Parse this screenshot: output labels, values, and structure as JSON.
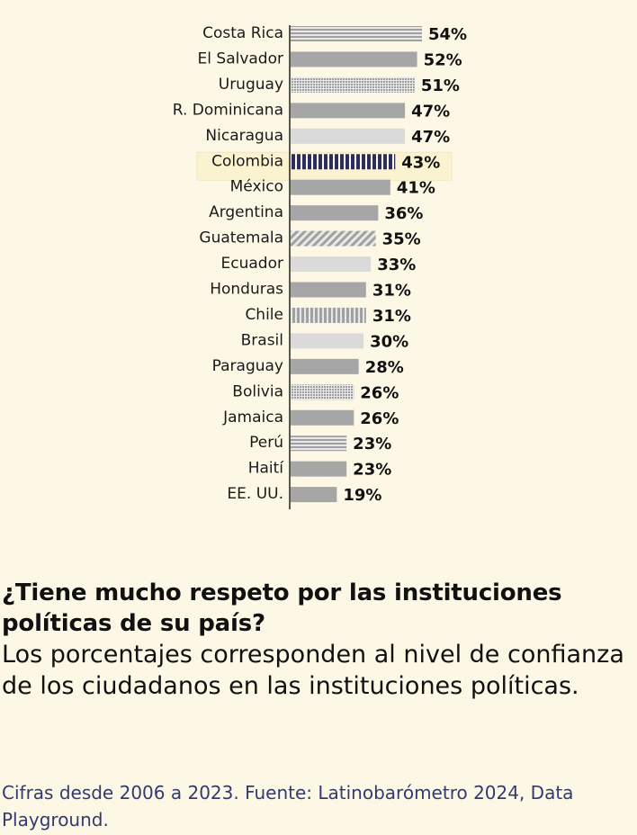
{
  "chart_data": {
    "type": "bar",
    "orientation": "horizontal",
    "categories": [
      "Costa Rica",
      "El Salvador",
      "Uruguay",
      "R. Dominicana",
      "Nicaragua",
      "Colombia",
      "México",
      "Argentina",
      "Guatemala",
      "Ecuador",
      "Honduras",
      "Chile",
      "Brasil",
      "Paraguay",
      "Bolivia",
      "Jamaica",
      "Perú",
      "Haití",
      "EE. UU."
    ],
    "values": [
      54,
      52,
      51,
      47,
      47,
      43,
      41,
      36,
      35,
      33,
      31,
      31,
      30,
      28,
      26,
      26,
      23,
      23,
      19
    ],
    "value_labels": [
      "54%",
      "52%",
      "51%",
      "47%",
      "47%",
      "43%",
      "41%",
      "36%",
      "35%",
      "33%",
      "31%",
      "31%",
      "30%",
      "28%",
      "26%",
      "26%",
      "23%",
      "23%",
      "19%"
    ],
    "patterns": [
      "hstripes",
      "solid",
      "dots",
      "solid",
      "light",
      "vstripes-dark",
      "solid",
      "solid",
      "diag",
      "light",
      "solid",
      "vstripes",
      "light",
      "solid",
      "dots",
      "solid",
      "hstripes",
      "solid",
      "solid"
    ],
    "highlight": "Colombia",
    "title": "¿Tiene mucho respeto por las instituciones políticas de su país?",
    "subtitle": "Los porcentajes corresponden al nivel de confianza de los ciudadanos en las instituciones políticas.",
    "source": "Cifras desde 2006 a 2023. Fuente: Latinobarómetro 2024, Data Playground.",
    "xlim": [
      0,
      54
    ],
    "colors": {
      "background": "#fdf8e6",
      "bar": "#a6a6a6",
      "bar_light": "#dadada",
      "highlight_bar": "#2f2d5e",
      "highlight_band": "#fbf3cf",
      "axis": "#222222",
      "source_text": "#333a72"
    }
  }
}
